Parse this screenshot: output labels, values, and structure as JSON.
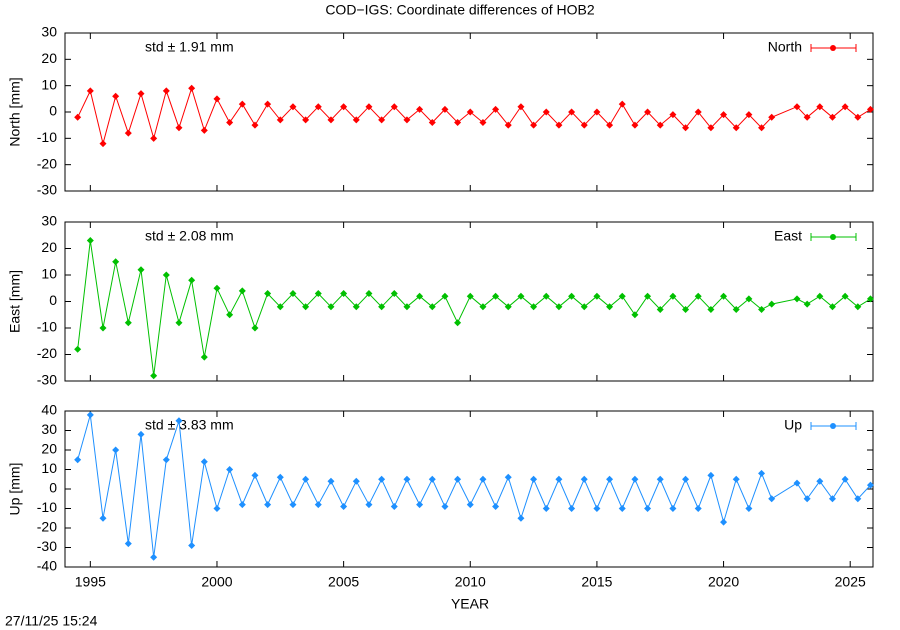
{
  "chart_data": {
    "type": "line",
    "title": "COD−IGS: Coordinate differences of HOB2",
    "timestamp": "27/11/25 15:24",
    "xlabel": "YEAR",
    "xlim": [
      1994,
      2025.9
    ],
    "xticks": [
      1995,
      2000,
      2005,
      2010,
      2015,
      2020,
      2025
    ],
    "x": [
      1994.5,
      1995,
      1995.5,
      1996,
      1996.5,
      1997,
      1997.5,
      1998,
      1998.5,
      1999,
      1999.5,
      2000,
      2000.5,
      2001,
      2001.5,
      2002,
      2002.5,
      2003,
      2003.5,
      2004,
      2004.5,
      2005,
      2005.5,
      2006,
      2006.5,
      2007,
      2007.5,
      2008,
      2008.5,
      2009,
      2009.5,
      2010,
      2010.5,
      2011,
      2011.5,
      2012,
      2012.5,
      2013,
      2013.5,
      2014,
      2014.5,
      2015,
      2015.5,
      2016,
      2016.5,
      2017,
      2017.5,
      2018,
      2018.5,
      2019,
      2019.5,
      2020,
      2020.5,
      2021,
      2021.5,
      2021.9,
      2022.9,
      2023.3,
      2023.8,
      2024.3,
      2024.8,
      2025.3,
      2025.8
    ],
    "panels": [
      {
        "ylabel": "North [mm]",
        "annotation": "std ± 1.91 mm",
        "ylim": [
          -30,
          30
        ],
        "yticks": [
          -30,
          -20,
          -10,
          0,
          10,
          20,
          30
        ],
        "series": [
          {
            "name": "North",
            "color": "#ff0000",
            "values": [
              -2,
              8,
              -12,
              6,
              -8,
              7,
              -10,
              8,
              -6,
              9,
              -7,
              5,
              -4,
              3,
              -5,
              3,
              -3,
              2,
              -3,
              2,
              -3,
              2,
              -3,
              2,
              -3,
              2,
              -3,
              1,
              -4,
              1,
              -4,
              0,
              -4,
              1,
              -5,
              2,
              -5,
              0,
              -5,
              0,
              -5,
              0,
              -5,
              3,
              -5,
              0,
              -5,
              -1,
              -6,
              0,
              -6,
              -1,
              -6,
              -1,
              -6,
              -2,
              2,
              -2,
              2,
              -2,
              2,
              -2,
              1
            ]
          }
        ]
      },
      {
        "ylabel": "East [mm]",
        "annotation": "std ± 2.08 mm",
        "ylim": [
          -30,
          30
        ],
        "yticks": [
          -30,
          -20,
          -10,
          0,
          10,
          20,
          30
        ],
        "series": [
          {
            "name": "East",
            "color": "#00c000",
            "values": [
              -18,
              23,
              -10,
              15,
              -8,
              12,
              -28,
              10,
              -8,
              8,
              -21,
              5,
              -5,
              4,
              -10,
              3,
              -2,
              3,
              -2,
              3,
              -2,
              3,
              -2,
              3,
              -2,
              3,
              -2,
              2,
              -2,
              2,
              -8,
              2,
              -2,
              2,
              -2,
              2,
              -2,
              2,
              -2,
              2,
              -2,
              2,
              -2,
              2,
              -5,
              2,
              -3,
              2,
              -3,
              2,
              -3,
              2,
              -3,
              1,
              -3,
              -1,
              1,
              -1,
              2,
              -2,
              2,
              -2,
              1
            ]
          }
        ]
      },
      {
        "ylabel": "Up [mm]",
        "annotation": "std ± 3.83 mm",
        "ylim": [
          -40,
          40
        ],
        "yticks": [
          -40,
          -30,
          -20,
          -10,
          0,
          10,
          20,
          30,
          40
        ],
        "series": [
          {
            "name": "Up",
            "color": "#1e90ff",
            "values": [
              15,
              38,
              -15,
              20,
              -28,
              28,
              -35,
              15,
              35,
              -29,
              14,
              -10,
              10,
              -8,
              7,
              -8,
              6,
              -8,
              5,
              -8,
              4,
              -9,
              4,
              -8,
              5,
              -9,
              5,
              -8,
              5,
              -9,
              5,
              -8,
              5,
              -9,
              6,
              -15,
              5,
              -10,
              5,
              -10,
              5,
              -10,
              5,
              -10,
              5,
              -10,
              5,
              -10,
              5,
              -10,
              7,
              -17,
              5,
              -10,
              8,
              -5,
              3,
              -5,
              4,
              -5,
              5,
              -5,
              2
            ]
          }
        ]
      }
    ]
  }
}
